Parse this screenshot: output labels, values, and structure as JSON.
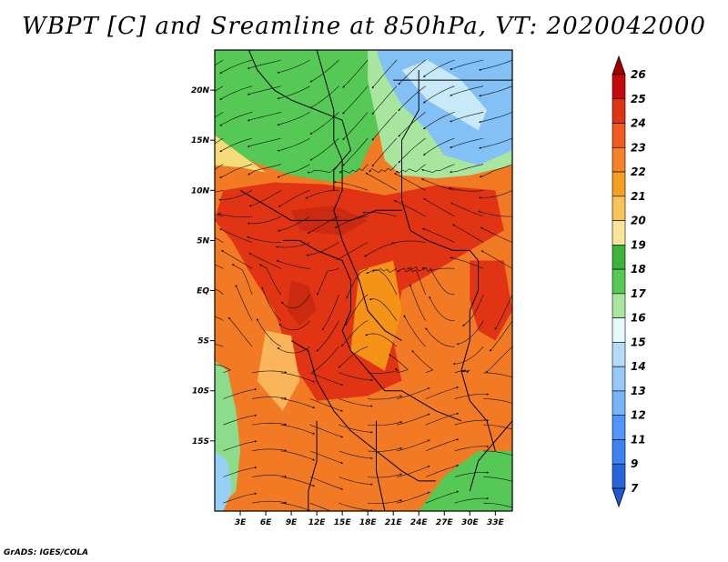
{
  "title": "WBPT [C] and Sreamline at 850hPa, VT: 2020042000",
  "credit": "GrADS: IGES/COLA",
  "map": {
    "lon_range": [
      0,
      35
    ],
    "lat_range": [
      -22,
      24
    ],
    "lon_ticks": [
      {
        "value": 3,
        "label": "3E"
      },
      {
        "value": 6,
        "label": "6E"
      },
      {
        "value": 9,
        "label": "9E"
      },
      {
        "value": 12,
        "label": "12E"
      },
      {
        "value": 15,
        "label": "15E"
      },
      {
        "value": 18,
        "label": "18E"
      },
      {
        "value": 21,
        "label": "21E"
      },
      {
        "value": 24,
        "label": "24E"
      },
      {
        "value": 27,
        "label": "27E"
      },
      {
        "value": 30,
        "label": "30E"
      },
      {
        "value": 33,
        "label": "33E"
      }
    ],
    "lat_ticks": [
      {
        "value": 20,
        "label": "20N"
      },
      {
        "value": 15,
        "label": "15N"
      },
      {
        "value": 10,
        "label": "10N"
      },
      {
        "value": 5,
        "label": "5N"
      },
      {
        "value": 0,
        "label": "EQ"
      },
      {
        "value": -5,
        "label": "5S"
      },
      {
        "value": -10,
        "label": "10S"
      },
      {
        "value": -15,
        "label": "15S"
      }
    ],
    "regions": [
      {
        "name": "north-green",
        "color": "#55c855",
        "points": [
          [
            0,
            24
          ],
          [
            22,
            24
          ],
          [
            22,
            20
          ],
          [
            20,
            17
          ],
          [
            18,
            14
          ],
          [
            17,
            12
          ],
          [
            14,
            10.8
          ],
          [
            9,
            11.5
          ],
          [
            4,
            13
          ],
          [
            0,
            15.5
          ]
        ]
      },
      {
        "name": "north-yellow",
        "color": "#f6dc78",
        "points": [
          [
            0,
            15.5
          ],
          [
            4,
            13
          ],
          [
            6,
            11.8
          ],
          [
            3,
            12.3
          ],
          [
            0,
            12.5
          ]
        ]
      },
      {
        "name": "north-light-green",
        "color": "#a8e6a0",
        "points": [
          [
            18,
            24
          ],
          [
            35,
            24
          ],
          [
            35,
            12.5
          ],
          [
            30,
            11.5
          ],
          [
            26,
            11.2
          ],
          [
            22,
            11.5
          ],
          [
            20,
            13
          ],
          [
            19,
            17
          ],
          [
            18,
            21
          ]
        ]
      },
      {
        "name": "north-blue",
        "color": "#82c0f5",
        "points": [
          [
            19,
            24
          ],
          [
            35,
            24
          ],
          [
            35,
            14
          ],
          [
            31,
            12.5
          ],
          [
            27,
            13.5
          ],
          [
            25,
            16
          ],
          [
            22,
            18.5
          ],
          [
            20,
            21.5
          ]
        ]
      },
      {
        "name": "north-paleblue",
        "color": "#c8eaf8",
        "points": [
          [
            22,
            22
          ],
          [
            25,
            19
          ],
          [
            28,
            17.5
          ],
          [
            31,
            16
          ],
          [
            32,
            18
          ],
          [
            29,
            21
          ],
          [
            25,
            23
          ]
        ]
      },
      {
        "name": "west-coast-green",
        "color": "#8cdc8c",
        "points": [
          [
            0,
            -7
          ],
          [
            1.5,
            -8
          ],
          [
            2.5,
            -12
          ],
          [
            3,
            -16
          ],
          [
            2.5,
            -20
          ],
          [
            0,
            -22
          ]
        ]
      },
      {
        "name": "west-coast-blue",
        "color": "#98cff5",
        "points": [
          [
            0,
            -16
          ],
          [
            1.5,
            -17
          ],
          [
            2,
            -20
          ],
          [
            1,
            -22
          ],
          [
            0,
            -22
          ]
        ]
      },
      {
        "name": "southeast-green",
        "color": "#55c855",
        "points": [
          [
            24,
            -22
          ],
          [
            35,
            -22
          ],
          [
            35,
            -16
          ],
          [
            31,
            -16
          ],
          [
            27,
            -18.5
          ]
        ]
      },
      {
        "name": "central-red",
        "color": "#e03414",
        "points": [
          [
            1,
            10
          ],
          [
            7,
            10.8
          ],
          [
            13,
            10.6
          ],
          [
            20,
            9.5
          ],
          [
            26,
            10.5
          ],
          [
            33,
            10
          ],
          [
            34,
            6
          ],
          [
            30,
            4
          ],
          [
            26,
            2
          ],
          [
            22,
            0
          ],
          [
            21,
            -5
          ],
          [
            22,
            -9
          ],
          [
            18,
            -10.5
          ],
          [
            12,
            -11
          ],
          [
            9,
            -7
          ],
          [
            7,
            -2
          ],
          [
            4,
            2
          ],
          [
            2,
            5
          ],
          [
            0,
            7
          ]
        ]
      },
      {
        "name": "east-red",
        "color": "#e03414",
        "points": [
          [
            30,
            3
          ],
          [
            34,
            3
          ],
          [
            35,
            -2
          ],
          [
            33,
            -5
          ],
          [
            31,
            -4
          ],
          [
            30,
            -1
          ]
        ]
      },
      {
        "name": "central-orange",
        "color": "#f59218",
        "points": [
          [
            17,
            2
          ],
          [
            21,
            3
          ],
          [
            22,
            -2
          ],
          [
            20,
            -8
          ],
          [
            16,
            -6
          ]
        ]
      },
      {
        "name": "congo-darkred",
        "color": "#cc2a10",
        "points": [
          [
            9,
            1
          ],
          [
            11,
            0.5
          ],
          [
            12,
            -2
          ],
          [
            10,
            -3.5
          ],
          [
            8.5,
            -2
          ]
        ]
      },
      {
        "name": "sahel-darkred",
        "color": "#cc2a10",
        "points": [
          [
            9,
            8
          ],
          [
            14,
            8.5
          ],
          [
            18,
            7
          ],
          [
            15,
            5.5
          ],
          [
            10,
            6
          ]
        ]
      },
      {
        "name": "south-light-orange",
        "color": "#fab45a",
        "points": [
          [
            6,
            -4
          ],
          [
            9,
            -4.5
          ],
          [
            10,
            -9
          ],
          [
            8,
            -12
          ],
          [
            5,
            -9
          ]
        ]
      }
    ],
    "boundaries": [
      {
        "name": "boundary-1",
        "points": [
          [
            4,
            24
          ],
          [
            5,
            22
          ],
          [
            7,
            20
          ],
          [
            9,
            19
          ],
          [
            12,
            18
          ],
          [
            15,
            17
          ],
          [
            16,
            14
          ],
          [
            14,
            12
          ],
          [
            14,
            10
          ]
        ]
      },
      {
        "name": "boundary-2",
        "points": [
          [
            12,
            24
          ],
          [
            13,
            21
          ],
          [
            14,
            18
          ],
          [
            14,
            15
          ],
          [
            15,
            13
          ],
          [
            15,
            10
          ],
          [
            14,
            8
          ],
          [
            15,
            5
          ],
          [
            16,
            3
          ],
          [
            17,
            1
          ],
          [
            18,
            -2
          ],
          [
            20,
            -4
          ],
          [
            22,
            -5
          ]
        ]
      },
      {
        "name": "boundary-3",
        "points": [
          [
            24,
            22
          ],
          [
            24,
            18
          ],
          [
            22,
            15
          ],
          [
            22,
            12
          ],
          [
            22,
            9
          ],
          [
            23,
            6
          ],
          [
            25,
            5
          ],
          [
            28,
            4
          ],
          [
            30,
            4
          ],
          [
            31,
            3
          ],
          [
            31,
            0
          ],
          [
            30,
            -2
          ],
          [
            30,
            -5
          ],
          [
            29,
            -8
          ],
          [
            30,
            -11
          ],
          [
            32,
            -13
          ],
          [
            33,
            -16
          ]
        ]
      },
      {
        "name": "boundary-4",
        "points": [
          [
            8,
            5
          ],
          [
            10,
            5
          ],
          [
            12,
            4
          ],
          [
            15,
            3
          ],
          [
            16,
            1
          ],
          [
            16,
            -2
          ],
          [
            15,
            -4
          ],
          [
            16,
            -6
          ],
          [
            18,
            -8
          ],
          [
            20,
            -10
          ],
          [
            22,
            -10
          ],
          [
            24,
            -11
          ],
          [
            26,
            -12
          ],
          [
            29,
            -13
          ]
        ]
      },
      {
        "name": "boundary-5",
        "points": [
          [
            9,
            -5
          ],
          [
            11,
            -6
          ],
          [
            12,
            -9
          ],
          [
            14,
            -12
          ],
          [
            16,
            -14
          ],
          [
            19,
            -16
          ],
          [
            22,
            -18
          ],
          [
            24,
            -19
          ],
          [
            26,
            -19
          ]
        ]
      },
      {
        "name": "boundary-6",
        "points": [
          [
            3,
            10
          ],
          [
            5,
            9
          ],
          [
            7,
            8
          ],
          [
            9,
            7
          ],
          [
            11,
            7
          ],
          [
            13,
            7
          ],
          [
            16,
            7
          ],
          [
            19,
            8
          ],
          [
            22,
            8
          ]
        ]
      },
      {
        "name": "boundary-7",
        "points": [
          [
            30,
            -20
          ],
          [
            31,
            -17
          ],
          [
            33,
            -15
          ],
          [
            35,
            -13
          ]
        ]
      },
      {
        "name": "boundary-8",
        "points": [
          [
            12,
            -13
          ],
          [
            12,
            -17
          ],
          [
            11,
            -20
          ],
          [
            11,
            -22
          ]
        ]
      },
      {
        "name": "boundary-9",
        "points": [
          [
            19,
            -13
          ],
          [
            19,
            -18
          ],
          [
            20,
            -22
          ]
        ]
      },
      {
        "name": "boundary-10",
        "points": [
          [
            21,
            21
          ],
          [
            26,
            21
          ],
          [
            35,
            21
          ]
        ]
      }
    ]
  },
  "colorbar": {
    "levels": [
      {
        "label": "26",
        "color": "#a50000"
      },
      {
        "label": "25",
        "color": "#c40a0a"
      },
      {
        "label": "24",
        "color": "#e03414"
      },
      {
        "label": "23",
        "color": "#f05a1e"
      },
      {
        "label": "22",
        "color": "#f58228"
      },
      {
        "label": "21",
        "color": "#f5a01e"
      },
      {
        "label": "20",
        "color": "#fac35a"
      },
      {
        "label": "19",
        "color": "#fae696"
      },
      {
        "label": "18",
        "color": "#3cb43c"
      },
      {
        "label": "17",
        "color": "#55c855"
      },
      {
        "label": "16",
        "color": "#a8e6a0"
      },
      {
        "label": "15",
        "color": "#e6f8fa"
      },
      {
        "label": "14",
        "color": "#b4dcfa"
      },
      {
        "label": "13",
        "color": "#96c8fa"
      },
      {
        "label": "12",
        "color": "#78b4fa"
      },
      {
        "label": "11",
        "color": "#5096fa"
      },
      {
        "label": "9",
        "color": "#3c82f0"
      },
      {
        "label": "7",
        "color": "#2864dc"
      }
    ],
    "bottom_color": "#1e5ad2"
  }
}
